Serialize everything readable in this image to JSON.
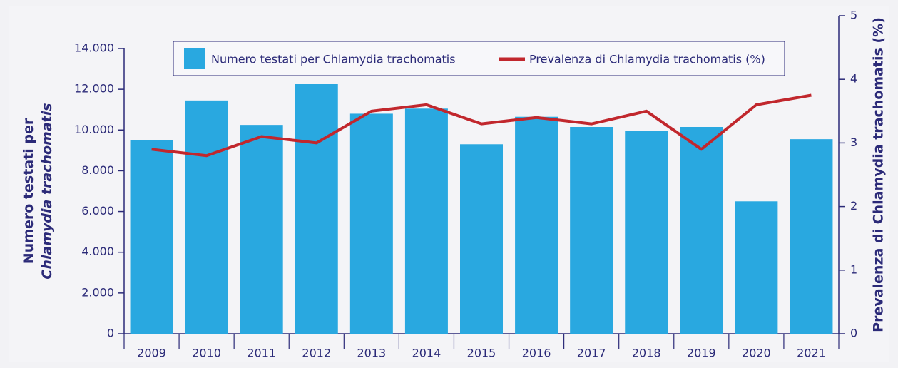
{
  "chart_data": {
    "type": "bar",
    "categories": [
      "2009",
      "2010",
      "2011",
      "2012",
      "2013",
      "2014",
      "2015",
      "2016",
      "2017",
      "2018",
      "2019",
      "2020",
      "2021"
    ],
    "series": [
      {
        "name": "Numero testati per Chlamydia trachomatis",
        "type": "bar",
        "color": "#29a8e0",
        "values": [
          9500,
          11450,
          10250,
          12250,
          10800,
          11050,
          9300,
          10650,
          10150,
          9950,
          10150,
          6500,
          9550
        ]
      },
      {
        "name": "Prevalenza di Chlamydia trachomatis (%)",
        "type": "line",
        "color": "#c1272d",
        "axis": "y2",
        "values": [
          2.9,
          2.8,
          3.1,
          3.0,
          3.5,
          3.6,
          3.3,
          3.4,
          3.3,
          3.5,
          2.9,
          3.6,
          3.75
        ]
      }
    ],
    "ylabel_lines": [
      "Numero testati per",
      "Chlamydia trachomatis"
    ],
    "y2label": "Prevalenza di Chlamydia trachomatis (%)",
    "ylim": [
      0,
      14000
    ],
    "yticks": [
      0,
      {
        "value": 2000,
        "label": "2.000"
      },
      {
        "value": 4000,
        "label": "4.000"
      },
      {
        "value": 6000,
        "label": "6.000"
      },
      {
        "value": 8000,
        "label": "8.000"
      },
      {
        "value": 10000,
        "label": "10.000"
      },
      {
        "value": 12000,
        "label": "12.000"
      },
      {
        "value": 14000,
        "label": "14.000"
      }
    ],
    "y2lim": [
      0,
      5
    ],
    "y2ticks": [
      0,
      1,
      2,
      3,
      4,
      5
    ],
    "legend": "top"
  }
}
